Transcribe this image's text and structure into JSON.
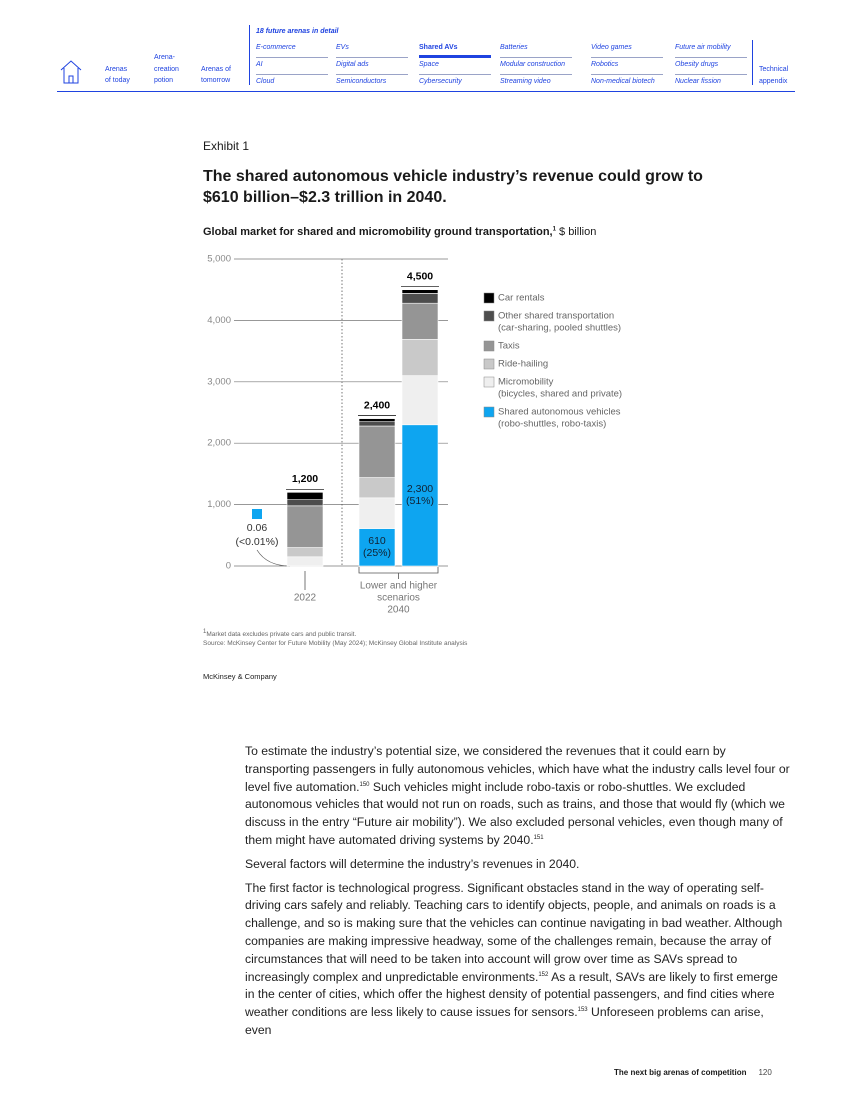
{
  "nav": {
    "left_items": [
      [
        "Arenas",
        "of today"
      ],
      [
        "Arena-",
        "creation",
        "potion"
      ],
      [
        "Arenas of",
        "tomorrow"
      ]
    ],
    "header": "18 future arenas in detail",
    "columns": [
      [
        "E-commerce",
        "AI",
        "Cloud"
      ],
      [
        "EVs",
        "Digital ads",
        "Semiconductors"
      ],
      [
        "Shared AVs",
        "Space",
        "Cybersecurity"
      ],
      [
        "Batteries",
        "Modular construction",
        "Streaming video"
      ],
      [
        "Video games",
        "Robotics",
        "Non-medical biotech"
      ],
      [
        "Future air mobility",
        "Obesity drugs",
        "Nuclear fission"
      ]
    ],
    "active": [
      2,
      0
    ],
    "right_item": [
      "Technical",
      "appendix"
    ]
  },
  "exhibit": {
    "label": "Exhibit 1",
    "title": "The shared autonomous vehicle industry’s revenue could grow to $610 billion–$2.3 trillion in 2040."
  },
  "chart_data": {
    "type": "stacked-bar",
    "title": "Global market for shared and micromobility ground transportation,",
    "title_sup": "1",
    "unit": "$ billion",
    "categories": [
      "2022",
      null,
      null
    ],
    "group_label": [
      "Lower and higher",
      "scenarios",
      "2040"
    ],
    "ylim": [
      0,
      5000
    ],
    "yticks": [
      0,
      {
        "value": 1000,
        "label": "1,000"
      },
      {
        "value": 2000,
        "label": "2,000"
      },
      {
        "value": 3000,
        "label": "3,000"
      },
      {
        "value": 4000,
        "label": "4,000"
      },
      {
        "value": 5000,
        "label": "5,000"
      }
    ],
    "grid": true,
    "series": [
      {
        "name": "Car rentals",
        "color": "#000000",
        "values": [
          120,
          50,
          60
        ]
      },
      {
        "name": "Other shared transportation",
        "detail": "(car-sharing, pooled shuttles)",
        "color": "#4d4d4d",
        "values": [
          100,
          70,
          160
        ]
      },
      {
        "name": "Taxis",
        "color": "#959595",
        "values": [
          680,
          840,
          590
        ]
      },
      {
        "name": "Ride-hailing",
        "color": "#c9c9c9",
        "values": [
          150,
          330,
          590
        ]
      },
      {
        "name": "Micromobility",
        "detail": "(bicycles, shared and private)",
        "color": "#efefef",
        "values": [
          150,
          500,
          800
        ]
      },
      {
        "name": "Shared autonomous vehicles",
        "detail": "(robo-shuttles, robo-taxis)",
        "color": "#0ea5f0",
        "values": [
          0.06,
          610,
          2300
        ],
        "value_labels": [
          [
            "0.06",
            "(<0.01%)"
          ],
          [
            "610",
            "(25%)"
          ],
          [
            "2,300",
            "(51%)"
          ]
        ]
      }
    ],
    "total_labels": [
      "1,200",
      "2,400",
      "4,500"
    ]
  },
  "footnote": {
    "marker": "1",
    "text": "Market data excludes private cars and public transit."
  },
  "source": "Source: McKinsey Center for Future Mobility (May 2024); McKinsey Global Institute analysis",
  "brand": "McKinsey & Company",
  "body": [
    [
      {
        "text": "To estimate the industry’s potential size, we considered the revenues that it could earn by transporting passengers in fully autonomous vehicles, which have what the industry calls level four or level five automation."
      },
      {
        "sup": "150"
      },
      {
        "text": " Such vehicles might include robo-taxis or robo-shuttles. We excluded autonomous vehicles that would not run on roads, such as trains, and those that would fly (which we discuss in the entry “Future air mobility”). We also excluded personal vehicles, even though many of them might have automated driving systems by 2040."
      },
      {
        "sup": "151"
      }
    ],
    [
      {
        "text": "Several factors will determine the industry’s revenues in 2040."
      }
    ],
    [
      {
        "text": "The first factor is technological progress. Significant obstacles stand in the way of operating self-driving cars safely and reliably. Teaching cars to identify objects, people, and animals on roads is a challenge, and so is making sure that the vehicles can continue navigating in bad weather. Although companies are making impressive headway, some of the challenges remain, because the array of circumstances that will need to be taken into account will grow over time as SAVs spread to increasingly complex and unpredictable environments."
      },
      {
        "sup": "152"
      },
      {
        "text": " As a result, SAVs are likely to first emerge in the center of cities, which offer the highest density of potential passengers, and find cities where weather conditions are less likely to cause issues for sensors."
      },
      {
        "sup": "153"
      },
      {
        "text": " Unforeseen problems can arise, even"
      }
    ]
  ],
  "footer": {
    "title": "The next big arenas of competition",
    "page": "120"
  }
}
